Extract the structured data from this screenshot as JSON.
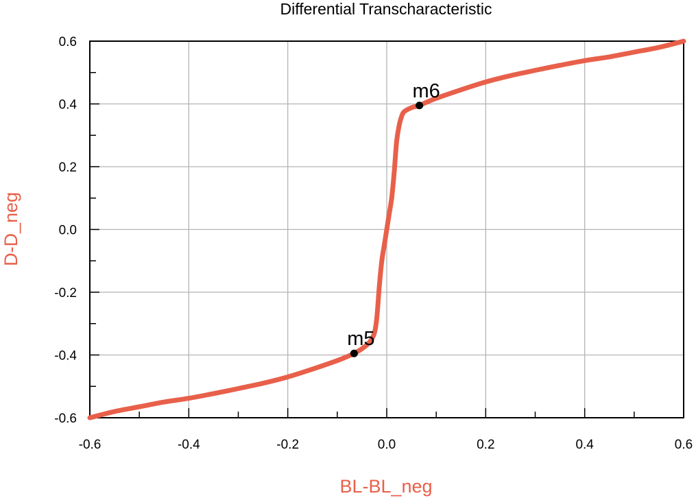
{
  "chart_data": {
    "type": "line",
    "title": "Differential Transcharacteristic",
    "xlabel": "BL-BL_neg",
    "ylabel": "D-D_neg",
    "xlim": [
      -0.6,
      0.6
    ],
    "ylim": [
      -0.6,
      0.6
    ],
    "x_ticks": [
      -0.6,
      -0.4,
      -0.2,
      0.0,
      0.2,
      0.4,
      0.6
    ],
    "x_tick_labels": [
      "-0.6",
      "-0.4",
      "-0.2",
      "0.0",
      "0.2",
      "0.4",
      "0.6"
    ],
    "y_ticks": [
      -0.6,
      -0.4,
      -0.2,
      0.0,
      0.2,
      0.4,
      0.6
    ],
    "y_tick_labels": [
      "-0.6",
      "-0.4",
      "-0.2",
      "0.0",
      "0.2",
      "0.4",
      "0.6"
    ],
    "grid": true,
    "series_color": "#e8604a",
    "label_color": "#e8604a",
    "series": [
      {
        "x": [
          -0.6,
          -0.55,
          -0.5,
          -0.45,
          -0.4,
          -0.35,
          -0.3,
          -0.25,
          -0.2,
          -0.15,
          -0.1,
          -0.08,
          -0.066,
          -0.05,
          -0.035,
          -0.025,
          -0.02,
          -0.015,
          -0.01,
          -0.005,
          0.0,
          0.005,
          0.01,
          0.015,
          0.02,
          0.025,
          0.03,
          0.035,
          0.05,
          0.066,
          0.08,
          0.1,
          0.15,
          0.2,
          0.25,
          0.3,
          0.35,
          0.4,
          0.45,
          0.5,
          0.55,
          0.6
        ],
        "y": [
          -0.6,
          -0.58,
          -0.565,
          -0.55,
          -0.538,
          -0.523,
          -0.507,
          -0.49,
          -0.47,
          -0.445,
          -0.418,
          -0.405,
          -0.395,
          -0.38,
          -0.36,
          -0.33,
          -0.28,
          -0.18,
          -0.1,
          -0.05,
          0.0,
          0.05,
          0.1,
          0.18,
          0.28,
          0.33,
          0.36,
          0.375,
          0.388,
          0.395,
          0.405,
          0.418,
          0.445,
          0.47,
          0.49,
          0.507,
          0.523,
          0.538,
          0.55,
          0.565,
          0.58,
          0.6
        ]
      }
    ],
    "markers": [
      {
        "name": "m5",
        "x": -0.066,
        "y": -0.395
      },
      {
        "name": "m6",
        "x": 0.066,
        "y": 0.395
      }
    ]
  }
}
